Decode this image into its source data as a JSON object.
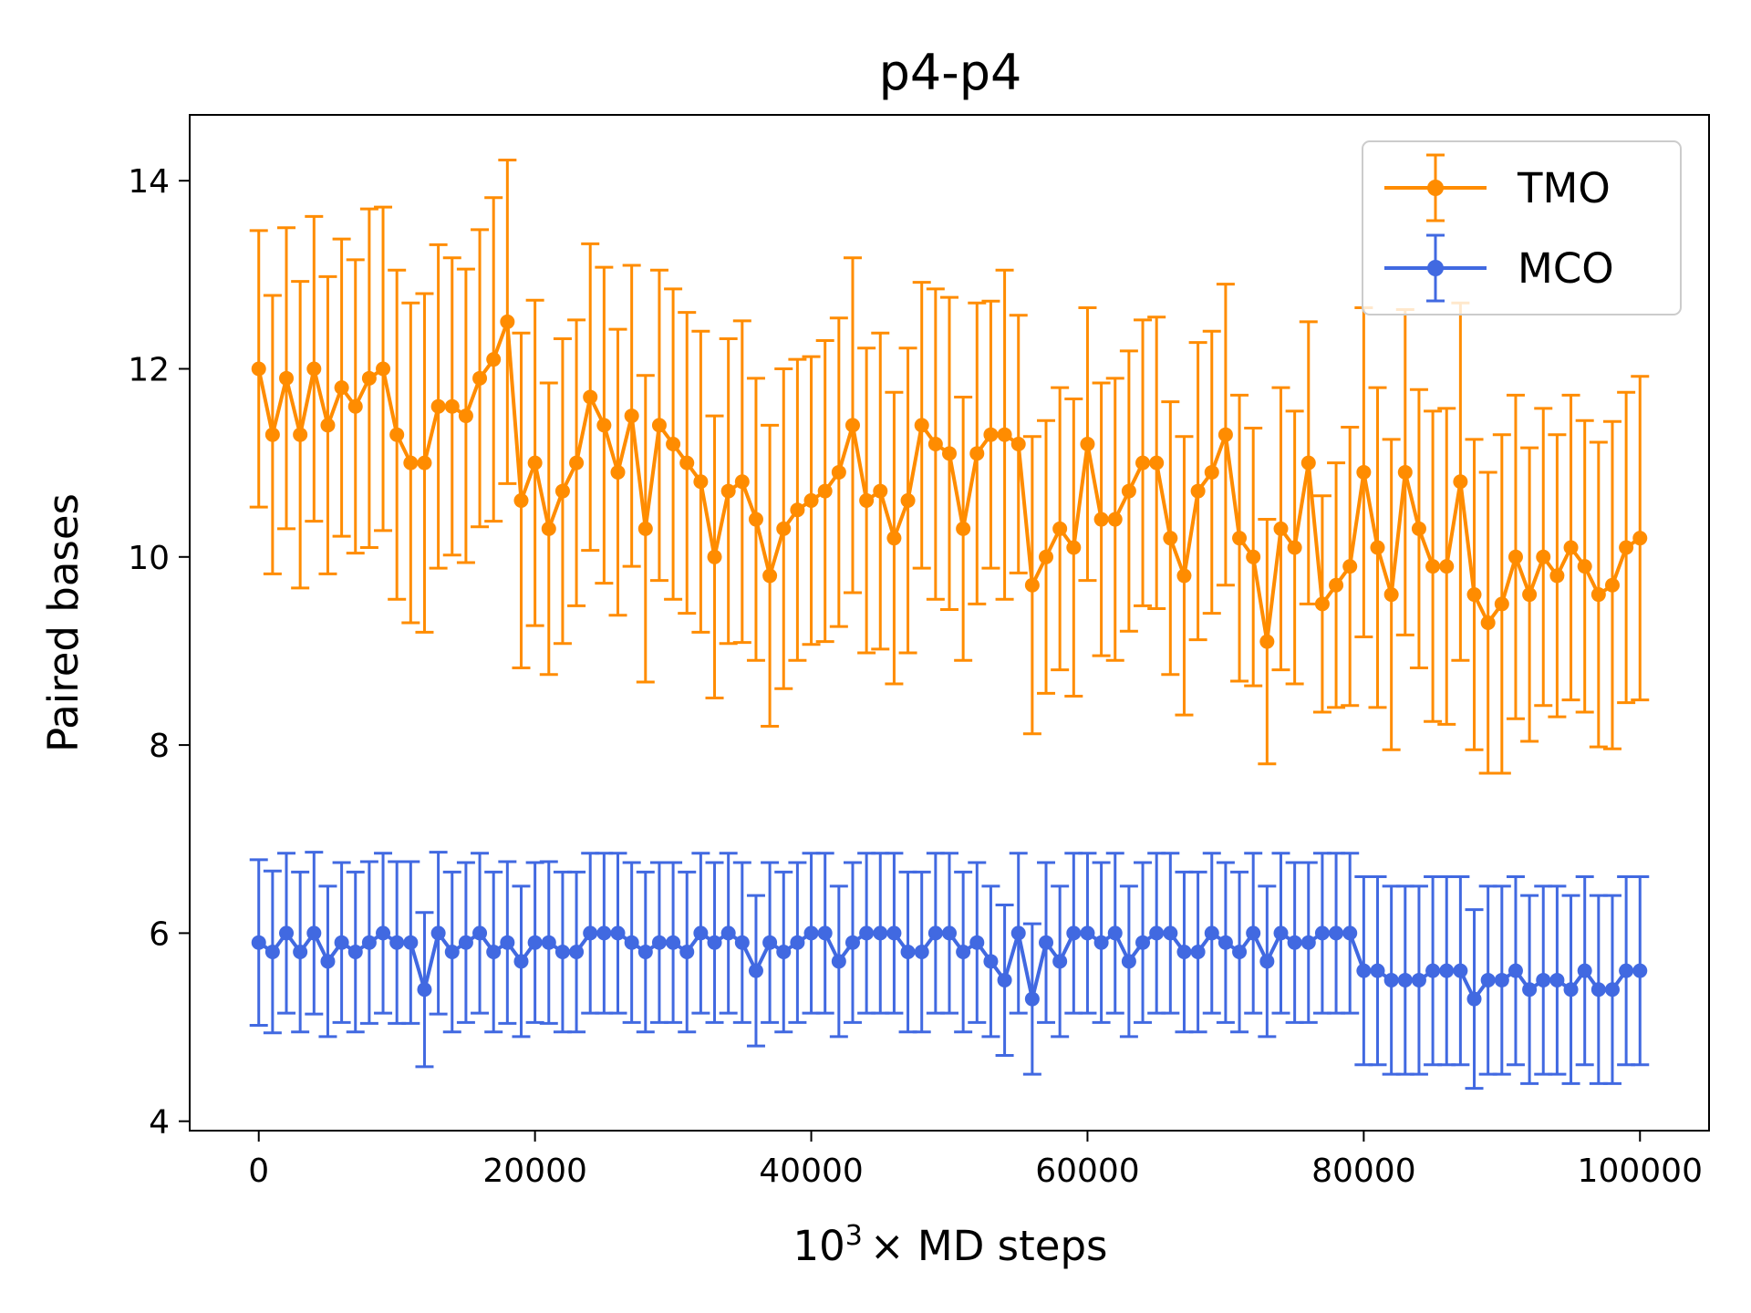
{
  "chart_data": {
    "type": "line",
    "title": "p4-p4",
    "xlabel": {
      "base": "10",
      "exponent": "3",
      "rest": "× MD steps"
    },
    "ylabel": "Paired bases",
    "xlim": [
      -5000,
      105000
    ],
    "ylim": [
      3.9,
      14.7
    ],
    "xticks": [
      0,
      20000,
      40000,
      60000,
      80000,
      100000
    ],
    "xtick_labels": [
      "0",
      "20000",
      "40000",
      "60000",
      "80000",
      "100000"
    ],
    "yticks": [
      4,
      6,
      8,
      10,
      12,
      14
    ],
    "ytick_labels": [
      "4",
      "6",
      "8",
      "10",
      "12",
      "14"
    ],
    "grid": false,
    "legend_position": "top-right",
    "x_start": 0,
    "x_step": 1000,
    "series": [
      {
        "name": "TMO",
        "color": "#ff8c00",
        "error_bars": true,
        "values": [
          12.0,
          11.3,
          11.9,
          11.3,
          12.0,
          11.4,
          11.8,
          11.6,
          11.9,
          12.0,
          11.3,
          11.0,
          11.0,
          11.6,
          11.6,
          11.5,
          11.9,
          12.1,
          12.5,
          10.6,
          11.0,
          10.3,
          10.7,
          11.0,
          11.7,
          11.4,
          10.9,
          11.5,
          10.3,
          11.4,
          11.2,
          11.0,
          10.8,
          10.0,
          10.7,
          10.8,
          10.4,
          9.8,
          10.3,
          10.5,
          10.6,
          10.7,
          10.9,
          11.4,
          10.6,
          10.7,
          10.2,
          10.6,
          11.4,
          11.2,
          11.1,
          10.3,
          11.1,
          11.3,
          11.3,
          11.2,
          9.7,
          10.0,
          10.3,
          10.1,
          11.2,
          10.4,
          10.4,
          10.7,
          11.0,
          11.0,
          10.2,
          9.8,
          10.7,
          10.9,
          11.3,
          10.2,
          10.0,
          9.1,
          10.3,
          10.1,
          11.0,
          9.5,
          9.7,
          9.9,
          10.9,
          10.1,
          9.6,
          10.9,
          10.3,
          9.9,
          9.9,
          10.8,
          9.6,
          9.3,
          9.5,
          10.0,
          9.6,
          10.0,
          9.8,
          10.1,
          9.9,
          9.6,
          9.7,
          10.1,
          10.2
        ],
        "errors": [
          1.47,
          1.48,
          1.6,
          1.63,
          1.62,
          1.58,
          1.58,
          1.56,
          1.8,
          1.72,
          1.75,
          1.7,
          1.8,
          1.72,
          1.58,
          1.56,
          1.58,
          1.72,
          1.72,
          1.78,
          1.73,
          1.55,
          1.62,
          1.52,
          1.63,
          1.68,
          1.52,
          1.6,
          1.63,
          1.65,
          1.65,
          1.6,
          1.6,
          1.5,
          1.62,
          1.71,
          1.5,
          1.6,
          1.7,
          1.6,
          1.53,
          1.6,
          1.64,
          1.78,
          1.62,
          1.68,
          1.55,
          1.62,
          1.52,
          1.65,
          1.66,
          1.4,
          1.6,
          1.42,
          1.75,
          1.37,
          1.58,
          1.45,
          1.5,
          1.58,
          1.45,
          1.45,
          1.5,
          1.49,
          1.52,
          1.55,
          1.45,
          1.48,
          1.58,
          1.5,
          1.6,
          1.52,
          1.37,
          1.3,
          1.5,
          1.45,
          1.5,
          1.15,
          1.3,
          1.48,
          1.75,
          1.7,
          1.65,
          1.73,
          1.48,
          1.65,
          1.68,
          1.9,
          1.65,
          1.6,
          1.8,
          1.72,
          1.56,
          1.58,
          1.5,
          1.62,
          1.55,
          1.62,
          1.74,
          1.65,
          1.72
        ]
      },
      {
        "name": "MCO",
        "color": "#4169e1",
        "error_bars": true,
        "values": [
          5.9,
          5.8,
          6.0,
          5.8,
          6.0,
          5.7,
          5.9,
          5.8,
          5.9,
          6.0,
          5.9,
          5.9,
          5.4,
          6.0,
          5.8,
          5.9,
          6.0,
          5.8,
          5.9,
          5.7,
          5.9,
          5.9,
          5.8,
          5.8,
          6.0,
          6.0,
          6.0,
          5.9,
          5.8,
          5.9,
          5.9,
          5.8,
          6.0,
          5.9,
          6.0,
          5.9,
          5.6,
          5.9,
          5.8,
          5.9,
          6.0,
          6.0,
          5.7,
          5.9,
          6.0,
          6.0,
          6.0,
          5.8,
          5.8,
          6.0,
          6.0,
          5.8,
          5.9,
          5.7,
          5.5,
          6.0,
          5.3,
          5.9,
          5.7,
          6.0,
          6.0,
          5.9,
          6.0,
          5.7,
          5.9,
          6.0,
          6.0,
          5.8,
          5.8,
          6.0,
          5.9,
          5.8,
          6.0,
          5.7,
          6.0,
          5.9,
          5.9,
          6.0,
          6.0,
          6.0,
          5.6,
          5.6,
          5.5,
          5.5,
          5.5,
          5.6,
          5.6,
          5.6,
          5.3,
          5.5,
          5.5,
          5.6,
          5.4,
          5.5,
          5.5,
          5.4,
          5.6,
          5.4,
          5.4,
          5.6,
          5.6
        ],
        "errors": [
          0.88,
          0.86,
          0.85,
          0.85,
          0.86,
          0.8,
          0.85,
          0.85,
          0.86,
          0.85,
          0.86,
          0.86,
          0.82,
          0.86,
          0.85,
          0.85,
          0.85,
          0.85,
          0.86,
          0.8,
          0.85,
          0.86,
          0.85,
          0.85,
          0.85,
          0.85,
          0.85,
          0.85,
          0.85,
          0.85,
          0.85,
          0.85,
          0.85,
          0.85,
          0.85,
          0.85,
          0.8,
          0.85,
          0.85,
          0.85,
          0.85,
          0.85,
          0.8,
          0.85,
          0.85,
          0.85,
          0.85,
          0.85,
          0.85,
          0.85,
          0.85,
          0.85,
          0.85,
          0.8,
          0.8,
          0.85,
          0.8,
          0.85,
          0.8,
          0.85,
          0.85,
          0.85,
          0.85,
          0.8,
          0.85,
          0.85,
          0.85,
          0.85,
          0.85,
          0.85,
          0.85,
          0.85,
          0.85,
          0.8,
          0.85,
          0.85,
          0.85,
          0.85,
          0.85,
          0.85,
          1.0,
          1.0,
          1.0,
          1.0,
          1.0,
          1.0,
          1.0,
          1.0,
          0.95,
          1.0,
          1.0,
          1.0,
          1.0,
          1.0,
          1.0,
          1.0,
          1.0,
          1.0,
          1.0,
          1.0,
          1.0
        ]
      }
    ]
  }
}
